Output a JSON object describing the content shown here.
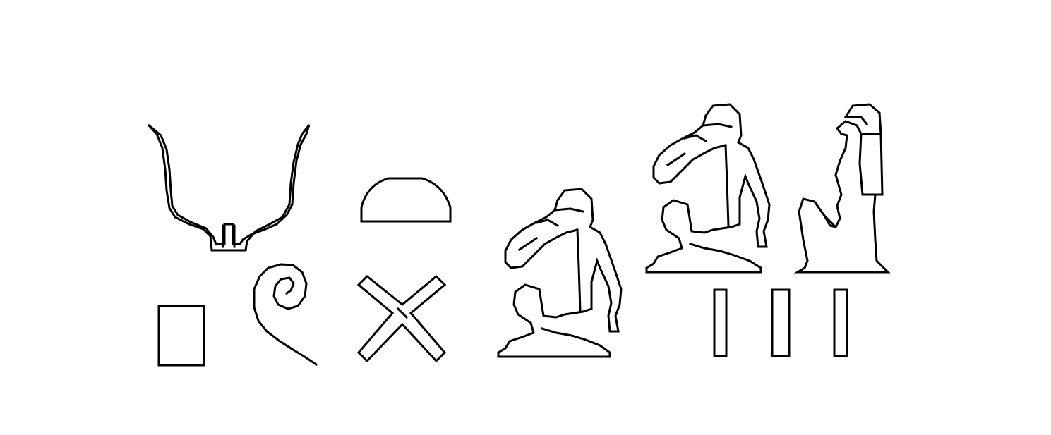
{
  "inscription": {
    "background_color": "#ffffff",
    "ink_color": "#000000",
    "glyphs": [
      {
        "id": "horns",
        "icon": "horns-hieroglyph-icon"
      },
      {
        "id": "bread",
        "icon": "bread-loaf-hieroglyph-icon"
      },
      {
        "id": "pool",
        "icon": "rectangle-hieroglyph-icon"
      },
      {
        "id": "coil",
        "icon": "spiral-rope-hieroglyph-icon"
      },
      {
        "id": "crossed-sticks",
        "icon": "crossed-sticks-hieroglyph-icon"
      },
      {
        "id": "man-hand-to-mouth-1",
        "icon": "seated-man-hand-to-mouth-hieroglyph-icon"
      },
      {
        "id": "man-hand-to-mouth-2",
        "icon": "seated-man-hand-to-mouth-hieroglyph-icon"
      },
      {
        "id": "seated-woman",
        "icon": "seated-woman-hieroglyph-icon"
      },
      {
        "id": "plural-strokes",
        "icon": "three-plural-strokes-hieroglyph-icon"
      }
    ]
  }
}
